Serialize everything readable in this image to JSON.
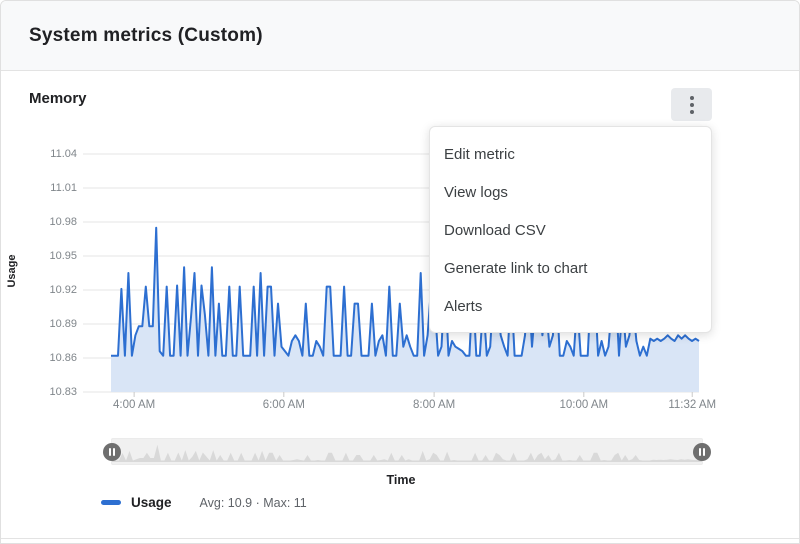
{
  "header": {
    "title": "System metrics (Custom)"
  },
  "card": {
    "title": "Memory"
  },
  "menu": {
    "items": [
      {
        "label": "Edit metric"
      },
      {
        "label": "View logs"
      },
      {
        "label": "Download CSV"
      },
      {
        "label": "Generate link to chart"
      },
      {
        "label": "Alerts"
      }
    ]
  },
  "colors": {
    "line": "#2d6fd1",
    "fill": "#d9e5f6",
    "grid": "#e6e6e6",
    "mini_spikes": "#d9d9d9"
  },
  "chart_data": {
    "type": "line",
    "title": "Memory",
    "xlabel": "Time",
    "ylabel": "Usage",
    "ylim": [
      10.83,
      11.04
    ],
    "grid": true,
    "legend_position": "bottom",
    "y_ticks": [
      "11.04",
      "11.01",
      "10.98",
      "10.95",
      "10.92",
      "10.89",
      "10.86",
      "10.83"
    ],
    "x_ticks": [
      {
        "label": "4:00 AM",
        "pos": 0.083
      },
      {
        "label": "6:00 AM",
        "pos": 0.326
      },
      {
        "label": "8:00 AM",
        "pos": 0.57
      },
      {
        "label": "10:00 AM",
        "pos": 0.813
      },
      {
        "label": "11:32 AM",
        "pos": 0.989
      }
    ],
    "series": [
      {
        "name": "Usage",
        "stats": "Avg: 10.9 · Max: 11",
        "avg": 10.9,
        "max": 11,
        "values": [
          10.862,
          10.862,
          10.862,
          10.921,
          10.862,
          10.935,
          10.862,
          10.88,
          10.888,
          10.888,
          10.923,
          10.888,
          10.888,
          10.975,
          10.866,
          10.862,
          10.923,
          10.862,
          10.862,
          10.924,
          10.862,
          10.94,
          10.862,
          10.896,
          10.935,
          10.862,
          10.924,
          10.898,
          10.862,
          10.94,
          10.862,
          10.908,
          10.862,
          10.862,
          10.923,
          10.862,
          10.862,
          10.923,
          10.862,
          10.862,
          10.862,
          10.923,
          10.862,
          10.935,
          10.862,
          10.923,
          10.923,
          10.862,
          10.908,
          10.87,
          10.866,
          10.862,
          10.875,
          10.88,
          10.875,
          10.862,
          10.908,
          10.862,
          10.862,
          10.875,
          10.87,
          10.862,
          10.923,
          10.923,
          10.862,
          10.862,
          10.862,
          10.923,
          10.862,
          10.862,
          10.908,
          10.908,
          10.862,
          10.862,
          10.862,
          10.908,
          10.862,
          10.875,
          10.88,
          10.862,
          10.923,
          10.862,
          10.862,
          10.908,
          10.87,
          10.88,
          10.87,
          10.862,
          10.862,
          10.935,
          10.862,
          10.88,
          10.923,
          10.908,
          10.862,
          10.87,
          10.93,
          10.862,
          10.875,
          10.87,
          10.868,
          10.866,
          10.862,
          10.862,
          10.923,
          10.862,
          10.862,
          10.908,
          10.862,
          10.87,
          10.923,
          10.908,
          10.88,
          10.87,
          10.862,
          10.923,
          10.862,
          10.862,
          10.862,
          10.88,
          10.923,
          10.87,
          10.908,
          10.923,
          10.88,
          10.908,
          10.87,
          10.88,
          10.923,
          10.862,
          10.862,
          10.875,
          10.87,
          10.862,
          10.908,
          10.862,
          10.862,
          10.862,
          10.923,
          10.923,
          10.862,
          10.875,
          10.862,
          10.87,
          10.908,
          10.923,
          10.862,
          10.908,
          10.87,
          10.88,
          10.908,
          10.875,
          10.862,
          10.87,
          10.862,
          10.877,
          10.875,
          10.877,
          10.875,
          10.877,
          10.88,
          10.877,
          10.875,
          10.88,
          10.877,
          10.88,
          10.877,
          10.875,
          10.877,
          10.875
        ]
      }
    ]
  }
}
